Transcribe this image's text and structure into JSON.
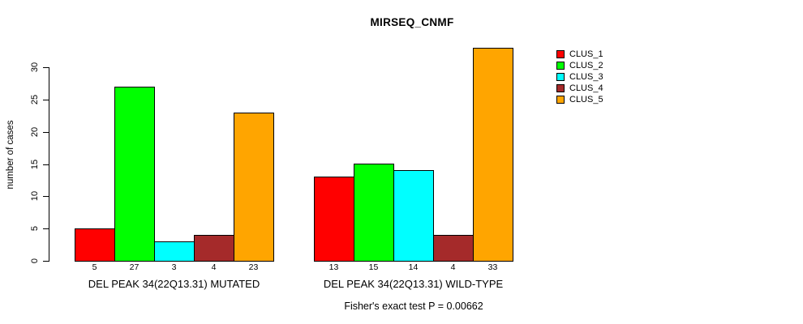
{
  "chart_data": {
    "type": "bar",
    "title": "MIRSEQ_CNMF",
    "ylabel": "number of cases",
    "xlabel": "",
    "ylim": [
      0,
      33
    ],
    "yticks": [
      0,
      5,
      10,
      15,
      20,
      25,
      30
    ],
    "grid": false,
    "series_labels": [
      "CLUS_1",
      "CLUS_2",
      "CLUS_3",
      "CLUS_4",
      "CLUS_5"
    ],
    "colors": [
      "#FF0000",
      "#00FF00",
      "#00FFFF",
      "#A52A2A",
      "#FFA500"
    ],
    "groups": [
      {
        "label": "DEL PEAK 34(22Q13.31) MUTATED",
        "values": [
          5,
          27,
          3,
          4,
          23
        ]
      },
      {
        "label": "DEL PEAK 34(22Q13.31) WILD-TYPE",
        "values": [
          13,
          15,
          14,
          4,
          33
        ]
      }
    ],
    "bar_value_labels_shown": true,
    "legend": {
      "position": "right",
      "entries": [
        {
          "label": "CLUS_1",
          "color": "#FF0000"
        },
        {
          "label": "CLUS_2",
          "color": "#00FF00"
        },
        {
          "label": "CLUS_3",
          "color": "#00FFFF"
        },
        {
          "label": "CLUS_4",
          "color": "#A52A2A"
        },
        {
          "label": "CLUS_5",
          "color": "#FFA500"
        }
      ]
    },
    "annotation": "Fisher's exact test P = 0.00662"
  }
}
